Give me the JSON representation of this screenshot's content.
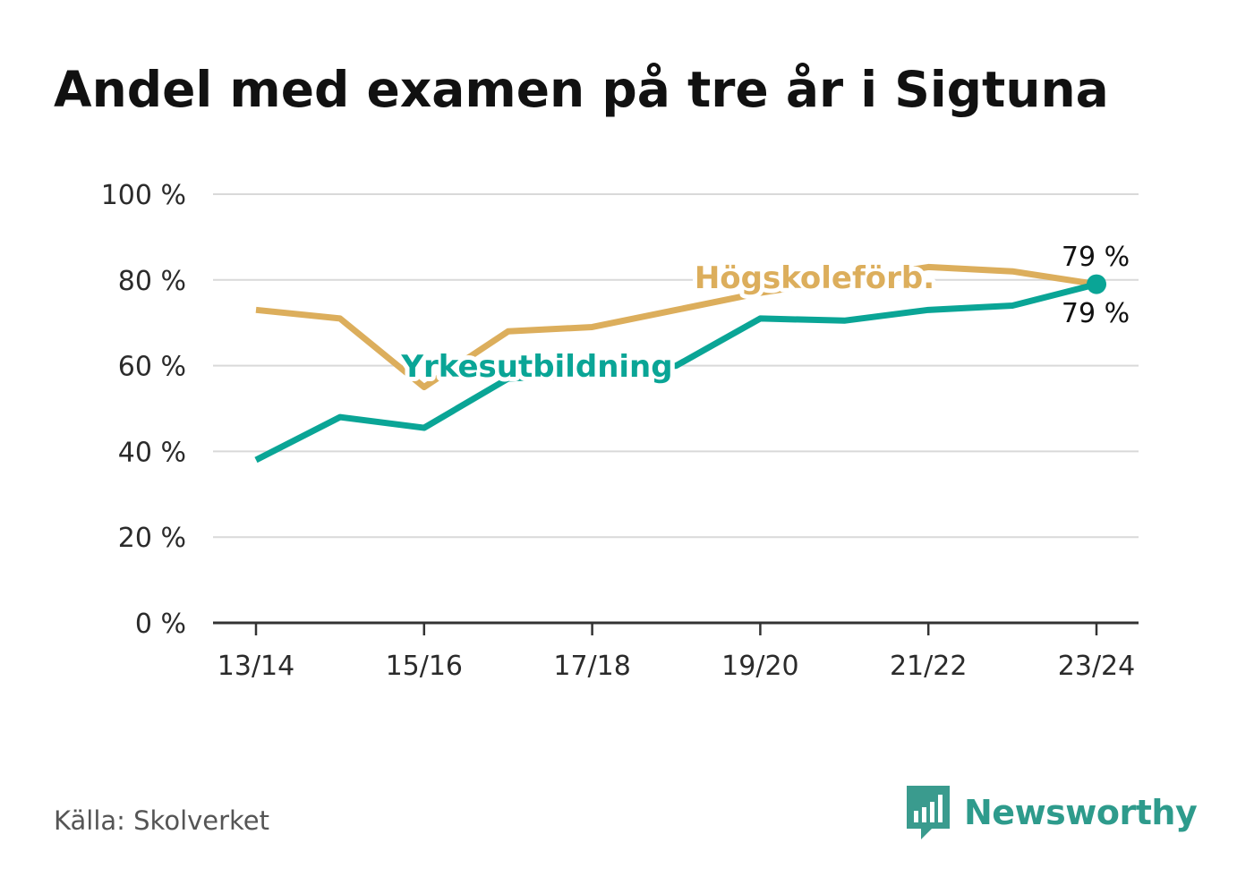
{
  "title": "Andel med examen på tre år i Sigtuna",
  "source": "Källa: Skolverket",
  "brand": {
    "name": "Newsworthy",
    "icon": "newsworthy-logo-icon",
    "color": "#3a9b8e"
  },
  "chart_data": {
    "type": "line",
    "title": "Andel med examen på tre år i Sigtuna",
    "xlabel": "",
    "ylabel": "",
    "x": [
      "13/14",
      "14/15",
      "15/16",
      "16/17",
      "17/18",
      "18/19",
      "19/20",
      "20/21",
      "21/22",
      "22/23",
      "23/24"
    ],
    "x_tick_labels": [
      "13/14",
      "15/16",
      "17/18",
      "19/20",
      "21/22",
      "23/24"
    ],
    "y_ticks": [
      0,
      20,
      40,
      60,
      80,
      100
    ],
    "y_tick_labels": [
      "0 %",
      "20 %",
      "40 %",
      "60 %",
      "80 %",
      "100 %"
    ],
    "ylim": [
      0,
      100
    ],
    "grid": true,
    "series": [
      {
        "name": "Högskoleförb.",
        "color": "#dcae5c",
        "values": [
          73,
          71,
          55,
          68,
          69,
          73,
          77,
          80,
          83,
          82,
          79
        ],
        "end_label": "79 %"
      },
      {
        "name": "Yrkesutbildning",
        "color": "#0aa596",
        "values": [
          38,
          48,
          45.5,
          57,
          58,
          60,
          71,
          70.5,
          73,
          74,
          79
        ],
        "end_label": "79 %"
      }
    ]
  }
}
